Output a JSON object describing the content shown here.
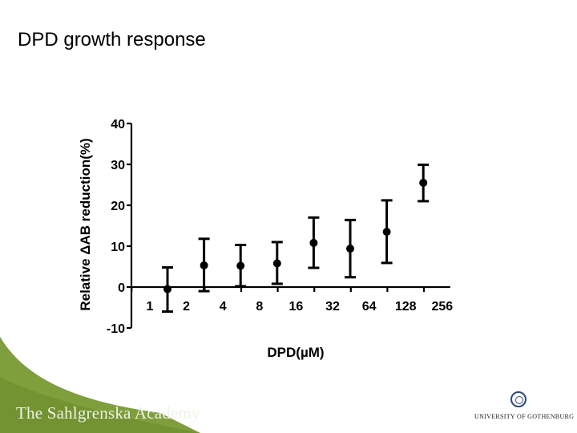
{
  "slide": {
    "title": "DPD growth response",
    "footer_left": "The Sahlgrenska Academy",
    "footer_right": "UNIVERSITY OF GOTHENBURG",
    "theme_colors": {
      "footer_green": "#7f9e3c",
      "footer_green_dark": "#5f7d25",
      "data": "#000000"
    },
    "seal_icon": "university-seal-icon"
  },
  "chart_data": {
    "type": "scatter",
    "title": "",
    "xlabel": "DPD(µM)",
    "ylabel": "Relative ΔAB reduction(%)",
    "x_ticks": [
      "1",
      "2",
      "4",
      "8",
      "16",
      "32",
      "64",
      "128",
      "256"
    ],
    "y_ticks": [
      "40",
      "30",
      "20",
      "10",
      "0",
      "-10"
    ],
    "ylim": [
      -10,
      40
    ],
    "grid": false,
    "series": [
      {
        "points": [
          {
            "x": 1,
            "y": -0.5,
            "err_low": -6,
            "err_high": 4.8
          },
          {
            "x": 2,
            "y": 5.3,
            "err_low": -1,
            "err_high": 11.8
          },
          {
            "x": 4,
            "y": 5.2,
            "err_low": 0.2,
            "err_high": 10.3
          },
          {
            "x": 8,
            "y": 5.8,
            "err_low": 0.8,
            "err_high": 11
          },
          {
            "x": 16,
            "y": 10.8,
            "err_low": 4.7,
            "err_high": 17
          },
          {
            "x": 32,
            "y": 9.4,
            "err_low": 2.4,
            "err_high": 16.4
          },
          {
            "x": 64,
            "y": 13.5,
            "err_low": 5.9,
            "err_high": 21.2
          },
          {
            "x": 128,
            "y": 25.5,
            "err_low": 21,
            "err_high": 29.9
          }
        ]
      }
    ]
  }
}
